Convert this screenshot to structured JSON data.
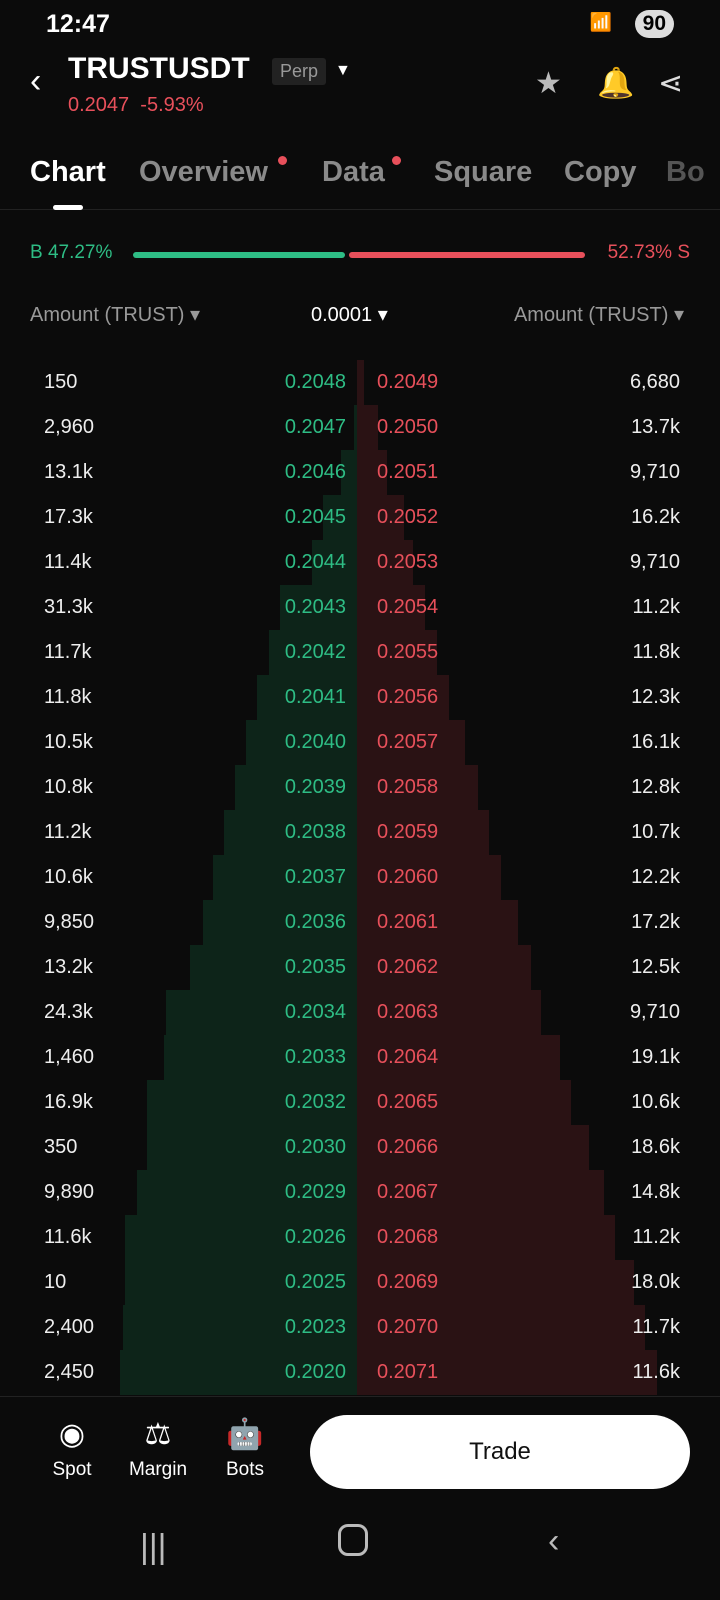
{
  "status": {
    "time": "12:47",
    "battery": "90"
  },
  "header": {
    "symbol": "TRUSTUSDT",
    "type": "Perp",
    "last_price": "0.2047",
    "change": "-5.93%"
  },
  "tabs": [
    {
      "label": "Chart",
      "active": true
    },
    {
      "label": "Overview",
      "dot": true
    },
    {
      "label": "Data",
      "dot": true
    },
    {
      "label": "Square"
    },
    {
      "label": "Copy"
    },
    {
      "label": "Bo"
    }
  ],
  "ratio": {
    "buy": "B 47.27%",
    "sell": "52.73% S",
    "buy_fraction": 0.4727
  },
  "columns": {
    "left": "Amount (TRUST) ▾",
    "precision": "0.0001 ▾",
    "right": "Amount (TRUST) ▾"
  },
  "orderbook": [
    [
      "150",
      "0.2048",
      "0.2049",
      "6,680"
    ],
    [
      "2,960",
      "0.2047",
      "0.2050",
      "13.7k"
    ],
    [
      "13.1k",
      "0.2046",
      "0.2051",
      "9,710"
    ],
    [
      "17.3k",
      "0.2045",
      "0.2052",
      "16.2k"
    ],
    [
      "11.4k",
      "0.2044",
      "0.2053",
      "9,710"
    ],
    [
      "31.3k",
      "0.2043",
      "0.2054",
      "11.2k"
    ],
    [
      "11.7k",
      "0.2042",
      "0.2055",
      "11.8k"
    ],
    [
      "11.8k",
      "0.2041",
      "0.2056",
      "12.3k"
    ],
    [
      "10.5k",
      "0.2040",
      "0.2057",
      "16.1k"
    ],
    [
      "10.8k",
      "0.2039",
      "0.2058",
      "12.8k"
    ],
    [
      "11.2k",
      "0.2038",
      "0.2059",
      "10.7k"
    ],
    [
      "10.6k",
      "0.2037",
      "0.2060",
      "12.2k"
    ],
    [
      "9,850",
      "0.2036",
      "0.2061",
      "17.2k"
    ],
    [
      "13.2k",
      "0.2035",
      "0.2062",
      "12.5k"
    ],
    [
      "24.3k",
      "0.2034",
      "0.2063",
      "9,710"
    ],
    [
      "1,460",
      "0.2033",
      "0.2064",
      "19.1k"
    ],
    [
      "16.9k",
      "0.2032",
      "0.2065",
      "10.6k"
    ],
    [
      "350",
      "0.2030",
      "0.2066",
      "18.6k"
    ],
    [
      "9,890",
      "0.2029",
      "0.2067",
      "14.8k"
    ],
    [
      "11.6k",
      "0.2026",
      "0.2068",
      "11.2k"
    ],
    [
      "10",
      "0.2025",
      "0.2069",
      "18.0k"
    ],
    [
      "2,400",
      "0.2023",
      "0.2070",
      "11.7k"
    ],
    [
      "2,450",
      "0.2020",
      "0.2071",
      "11.6k"
    ]
  ],
  "bottom": {
    "spot": "Spot",
    "margin": "Margin",
    "bots": "Bots",
    "trade": "Trade"
  },
  "colors": {
    "buy": "#2ebd85",
    "sell": "#e8505b"
  }
}
